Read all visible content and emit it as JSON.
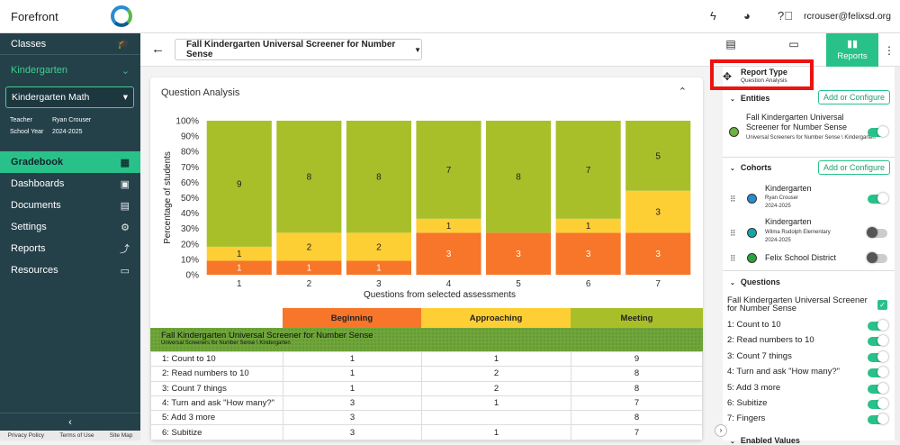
{
  "app": {
    "name": "Forefront",
    "user_email": "rcrouser@felixsd.org"
  },
  "sidebar": {
    "classes_label": "Classes",
    "grade_label": "Kindergarten",
    "class_select": "Kindergarten Math",
    "teacher_key": "Teacher",
    "teacher_value": "Ryan Crouser",
    "year_key": "School Year",
    "year_value": "2024-2025",
    "items": [
      {
        "label": "Gradebook",
        "icon": "grid-icon"
      },
      {
        "label": "Dashboards",
        "icon": "dashboard-icon"
      },
      {
        "label": "Documents",
        "icon": "document-icon"
      },
      {
        "label": "Settings",
        "icon": "gear-icon"
      },
      {
        "label": "Reports",
        "icon": "trend-icon"
      },
      {
        "label": "Resources",
        "icon": "folder-icon"
      }
    ],
    "footer": [
      "Privacy Policy",
      "Terms of Use",
      "Site Map"
    ]
  },
  "header": {
    "assessment": "Fall Kindergarten Universal Screener for Number Sense"
  },
  "tabs": {
    "reports": "Reports",
    "hidden_1": "Gradebook",
    "hidden_2": "Interview"
  },
  "panel": {
    "title": "Question Analysis",
    "legend": [
      "Beginning",
      "Approaching",
      "Meeting"
    ],
    "group_title": "Fall Kindergarten Universal Screener for Number Sense",
    "group_sub": "Universal Screeners for Number Sense \\ Kindergarten",
    "rows": [
      {
        "q": "1: Count to 10",
        "b": "1",
        "a": "1",
        "m": "9"
      },
      {
        "q": "2: Read numbers to 10",
        "b": "1",
        "a": "2",
        "m": "8"
      },
      {
        "q": "3: Count 7 things",
        "b": "1",
        "a": "2",
        "m": "8"
      },
      {
        "q": "4: Turn and ask \"How many?\"",
        "b": "3",
        "a": "1",
        "m": "7"
      },
      {
        "q": "5: Add 3 more",
        "b": "3",
        "a": "",
        "m": "8"
      },
      {
        "q": "6: Subitize",
        "b": "3",
        "a": "1",
        "m": "7"
      }
    ]
  },
  "chart_data": {
    "type": "bar",
    "stacked": true,
    "categories": [
      "1",
      "2",
      "3",
      "4",
      "5",
      "6",
      "7"
    ],
    "series": [
      {
        "name": "Beginning",
        "color": "#f7762a",
        "values": [
          1,
          1,
          1,
          3,
          3,
          3,
          3
        ]
      },
      {
        "name": "Approaching",
        "color": "#fdcf34",
        "values": [
          1,
          2,
          2,
          1,
          0,
          1,
          3
        ]
      },
      {
        "name": "Meeting",
        "color": "#a9bf2a",
        "values": [
          9,
          8,
          8,
          7,
          8,
          7,
          5
        ]
      }
    ],
    "xlabel": "Questions from selected assessments",
    "ylabel": "Percentage of students",
    "yticks": [
      "0%",
      "10%",
      "20%",
      "30%",
      "40%",
      "50%",
      "60%",
      "70%",
      "80%",
      "90%",
      "100%"
    ],
    "ylim": [
      0,
      100
    ]
  },
  "config": {
    "report_type_title": "Report Type",
    "report_type_value": "Question Analysis",
    "entities_label": "Entities",
    "add_label": "Add or Configure",
    "entity_title": "Fall Kindergarten Universal Screener for Number Sense",
    "entity_sub": "Universal Screeners for Number Sense \\ Kindergarten",
    "cohorts_label": "Cohorts",
    "cohorts": [
      {
        "title": "Kindergarten",
        "sub1": "Ryan Crouser",
        "sub2": "2024-2025",
        "color": "#2a8bd0",
        "on": true
      },
      {
        "title": "Kindergarten",
        "sub1": "Wilma Rudolph Elementary",
        "sub2": "2024-2025",
        "color": "#1aa3a3",
        "on": false
      },
      {
        "title": "Felix School District",
        "sub1": "",
        "sub2": "",
        "color": "#2aa33a",
        "on": false
      }
    ],
    "questions_label": "Questions",
    "assessment_q": "Fall Kindergarten Universal Screener for Number Sense",
    "questions": [
      "1: Count to 10",
      "2: Read numbers to 10",
      "3: Count 7 things",
      "4: Turn and ask \"How many?\"",
      "5: Add 3 more",
      "6: Subitize",
      "7: Fingers"
    ],
    "enabled_label": "Enabled Values"
  }
}
